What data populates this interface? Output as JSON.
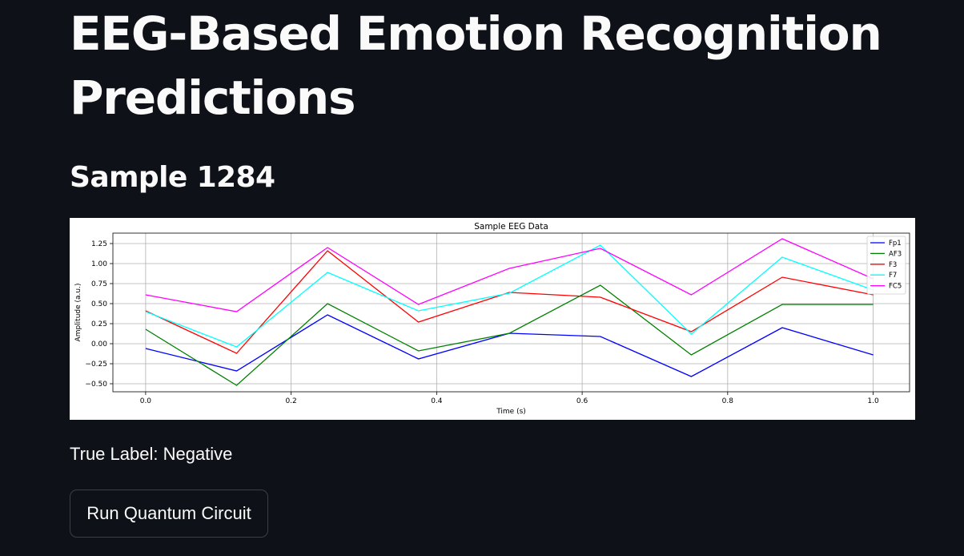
{
  "page": {
    "title": "EEG-Based Emotion Recognition Predictions",
    "subtitle": "Sample 1284",
    "true_label": "True Label: Negative",
    "run_button_label": "Run Quantum Circuit"
  },
  "chart_data": {
    "type": "line",
    "title": "Sample EEG Data",
    "xlabel": "Time (s)",
    "ylabel": "Amplitude (a.u.)",
    "xlim": [
      -0.045,
      1.05
    ],
    "ylim": [
      -0.6,
      1.38
    ],
    "grid": true,
    "legend_position": "top-right",
    "x": [
      0.0,
      0.125,
      0.25,
      0.375,
      0.5,
      0.625,
      0.75,
      0.875,
      1.0
    ],
    "x_ticks": [
      0.0,
      0.2,
      0.4,
      0.6,
      0.8,
      1.0
    ],
    "x_tick_labels": [
      "0.0",
      "0.2",
      "0.4",
      "0.6",
      "0.8",
      "1.0"
    ],
    "y_ticks": [
      -0.5,
      -0.25,
      0.0,
      0.25,
      0.5,
      0.75,
      1.0,
      1.25
    ],
    "y_tick_labels": [
      "−0.50",
      "−0.25",
      "0.00",
      "0.25",
      "0.50",
      "0.75",
      "1.00",
      "1.25"
    ],
    "series": [
      {
        "name": "Fp1",
        "color": "#0000ff",
        "values": [
          -0.06,
          -0.34,
          0.36,
          -0.19,
          0.13,
          0.09,
          -0.41,
          0.2,
          -0.14
        ]
      },
      {
        "name": "AF3",
        "color": "#008000",
        "values": [
          0.18,
          -0.52,
          0.5,
          -0.09,
          0.13,
          0.73,
          -0.14,
          0.49,
          0.49
        ]
      },
      {
        "name": "F3",
        "color": "#ff0000",
        "values": [
          0.41,
          -0.12,
          1.16,
          0.27,
          0.64,
          0.58,
          0.15,
          0.83,
          0.61
        ]
      },
      {
        "name": "F7",
        "color": "#00ffff",
        "values": [
          0.4,
          -0.04,
          0.89,
          0.41,
          0.63,
          1.23,
          0.12,
          1.08,
          0.67
        ]
      },
      {
        "name": "FC5",
        "color": "#ff00ff",
        "values": [
          0.61,
          0.4,
          1.2,
          0.49,
          0.94,
          1.19,
          0.61,
          1.31,
          0.81
        ]
      }
    ]
  }
}
